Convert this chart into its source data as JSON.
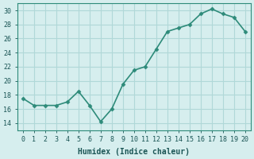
{
  "x": [
    0,
    1,
    2,
    3,
    4,
    5,
    6,
    7,
    8,
    9,
    10,
    11,
    12,
    13,
    14,
    15,
    16,
    17,
    18,
    19,
    20
  ],
  "y": [
    17.5,
    16.5,
    16.5,
    16.5,
    17.0,
    18.5,
    16.5,
    14.2,
    16.0,
    19.5,
    21.5,
    22.0,
    24.5,
    27.0,
    27.5,
    28.0,
    29.5,
    30.2,
    29.5,
    29.0,
    27.0
  ],
  "xlabel": "Humidex (Indice chaleur)",
  "ylabel": "",
  "xlim": [
    -0.5,
    20.5
  ],
  "ylim": [
    13,
    31
  ],
  "yticks": [
    14,
    16,
    18,
    20,
    22,
    24,
    26,
    28,
    30
  ],
  "xticks": [
    0,
    1,
    2,
    3,
    4,
    5,
    6,
    7,
    8,
    9,
    10,
    11,
    12,
    13,
    14,
    15,
    16,
    17,
    18,
    19,
    20
  ],
  "line_color": "#2e8b7a",
  "marker_color": "#2e8b7a",
  "bg_color": "#d6eeee",
  "grid_color": "#b0d8d8",
  "title_fontsize": 7,
  "label_fontsize": 7,
  "tick_fontsize": 6
}
